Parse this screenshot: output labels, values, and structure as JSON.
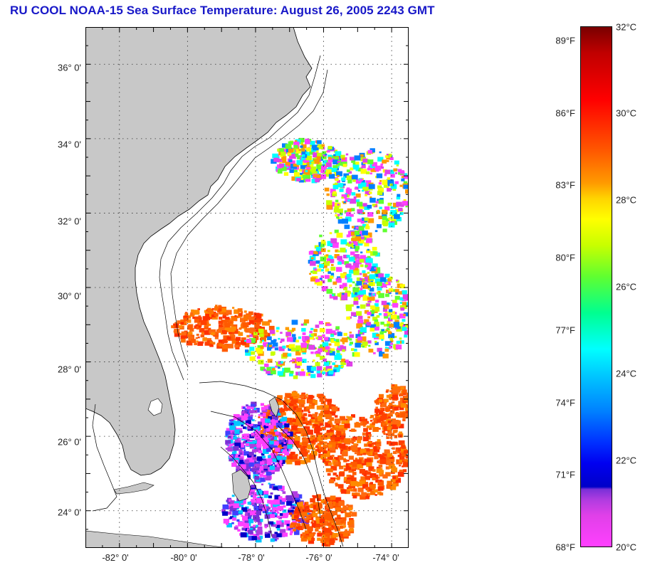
{
  "title": "RU COOL  NOAA-15  Sea Surface Temperature:  August 26, 2005 2243 GMT",
  "map": {
    "land_color": "#c8c8c8",
    "ocean_no_data_color": "#ffffff",
    "latitude_labels": [
      "36° 0'",
      "34° 0'",
      "32° 0'",
      "30° 0'",
      "28° 0'",
      "26° 0'",
      "24° 0'"
    ],
    "longitude_labels": [
      "-82° 0'",
      "-80° 0'",
      "-78° 0'",
      "-76° 0'",
      "-74° 0'"
    ],
    "latitude_values": [
      36,
      34,
      32,
      30,
      28,
      26,
      24
    ],
    "longitude_values": [
      -82,
      -80,
      -78,
      -76,
      -74
    ],
    "lat_range": [
      23,
      37
    ],
    "lon_range": [
      -83,
      -73.5
    ],
    "grid": "dotted"
  },
  "colorbar": {
    "fahrenheit_labels": [
      "89°F",
      "86°F",
      "83°F",
      "80°F",
      "77°F",
      "74°F",
      "71°F",
      "68°F"
    ],
    "celsius_labels": [
      "32°C",
      "30°C",
      "28°C",
      "26°C",
      "24°C",
      "22°C",
      "20°C"
    ],
    "min_celsius": 20,
    "max_celsius": 32
  }
}
